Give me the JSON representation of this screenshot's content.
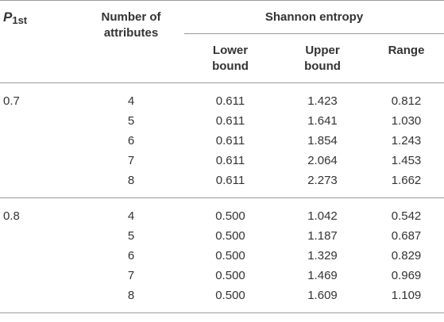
{
  "table": {
    "header": {
      "p_symbol": "P",
      "p_subscript": "1st",
      "attributes": "Number of attributes",
      "shannon": "Shannon entropy",
      "lower": "Lower bound",
      "upper": "Upper bound",
      "range": "Range"
    },
    "groups": [
      {
        "p": "0.7",
        "rows": [
          {
            "n": "4",
            "lower": "0.611",
            "upper": "1.423",
            "range": "0.812"
          },
          {
            "n": "5",
            "lower": "0.611",
            "upper": "1.641",
            "range": "1.030"
          },
          {
            "n": "6",
            "lower": "0.611",
            "upper": "1.854",
            "range": "1.243"
          },
          {
            "n": "7",
            "lower": "0.611",
            "upper": "2.064",
            "range": "1.453"
          },
          {
            "n": "8",
            "lower": "0.611",
            "upper": "2.273",
            "range": "1.662"
          }
        ]
      },
      {
        "p": "0.8",
        "rows": [
          {
            "n": "4",
            "lower": "0.500",
            "upper": "1.042",
            "range": "0.542"
          },
          {
            "n": "5",
            "lower": "0.500",
            "upper": "1.187",
            "range": "0.687"
          },
          {
            "n": "6",
            "lower": "0.500",
            "upper": "1.329",
            "range": "0.829"
          },
          {
            "n": "7",
            "lower": "0.500",
            "upper": "1.469",
            "range": "0.969"
          },
          {
            "n": "8",
            "lower": "0.500",
            "upper": "1.609",
            "range": "1.109"
          }
        ]
      }
    ]
  }
}
